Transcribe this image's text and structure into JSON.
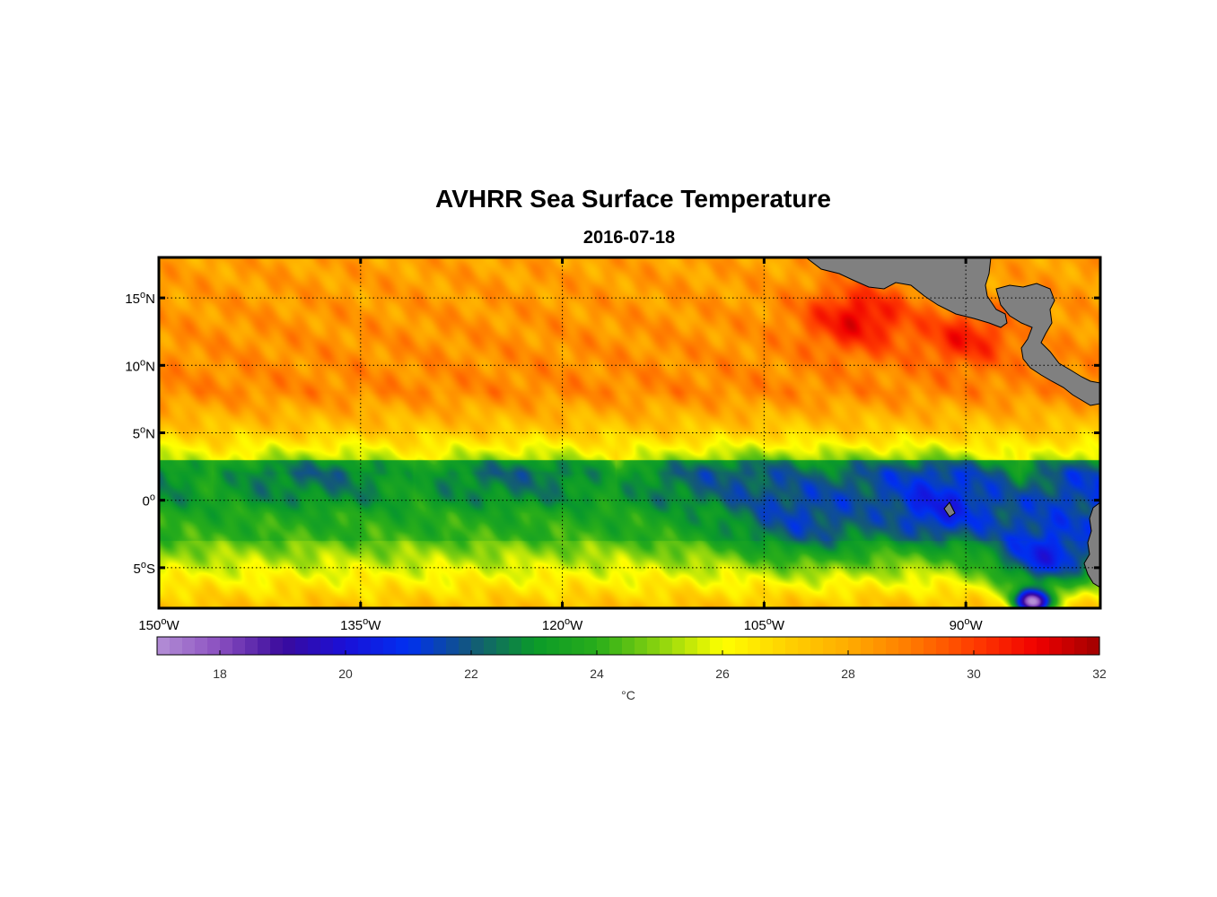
{
  "chart_data": {
    "type": "heatmap",
    "title": "AVHRR Sea Surface Temperature",
    "subtitle": "2016-07-18",
    "xlim": [
      -150,
      -80
    ],
    "ylim": [
      -8,
      18
    ],
    "x_ticks": [
      {
        "value": -150,
        "label": "150",
        "suffix": "W"
      },
      {
        "value": -135,
        "label": "135",
        "suffix": "W"
      },
      {
        "value": -120,
        "label": "120",
        "suffix": "W"
      },
      {
        "value": -105,
        "label": "105",
        "suffix": "W"
      },
      {
        "value": -90,
        "label": "90",
        "suffix": "W"
      }
    ],
    "y_ticks": [
      {
        "value": 15,
        "label": "15",
        "suffix": "N"
      },
      {
        "value": 10,
        "label": "10",
        "suffix": "N"
      },
      {
        "value": 5,
        "label": "5",
        "suffix": "N"
      },
      {
        "value": 0,
        "label": "0",
        "suffix": ""
      },
      {
        "value": -5,
        "label": "5",
        "suffix": "S"
      }
    ],
    "degree_symbol": "o",
    "colorbar": {
      "range": [
        17,
        32
      ],
      "ticks": [
        18,
        20,
        22,
        24,
        26,
        28,
        30,
        32
      ],
      "label": "°C",
      "stops": [
        {
          "value": 17,
          "color": "#b48fd6"
        },
        {
          "value": 18,
          "color": "#8a4fc0"
        },
        {
          "value": 19,
          "color": "#3a0a9c"
        },
        {
          "value": 20,
          "color": "#1a10d8"
        },
        {
          "value": 21,
          "color": "#0030f0"
        },
        {
          "value": 22,
          "color": "#13587a"
        },
        {
          "value": 23,
          "color": "#0a9a2a"
        },
        {
          "value": 24,
          "color": "#28ad1a"
        },
        {
          "value": 25,
          "color": "#8cd40e"
        },
        {
          "value": 26,
          "color": "#ffff00"
        },
        {
          "value": 27,
          "color": "#ffd200"
        },
        {
          "value": 28,
          "color": "#ffac00"
        },
        {
          "value": 29,
          "color": "#ff7a00"
        },
        {
          "value": 30,
          "color": "#ff3c00"
        },
        {
          "value": 31,
          "color": "#f00000"
        },
        {
          "value": 32,
          "color": "#a00000"
        }
      ]
    },
    "sst_features": [
      {
        "lon": -84,
        "lat": -4,
        "sst": 20.5,
        "spread": 4
      },
      {
        "lon": -85,
        "lat": -7.5,
        "sst": 17.5,
        "spread": 1.5
      },
      {
        "lon": -92,
        "lat": -0.5,
        "sst": 20.5,
        "spread": 3.5
      },
      {
        "lon": -102,
        "lat": -0.8,
        "sst": 21.5,
        "spread": 5
      },
      {
        "lon": -98,
        "lat": 13.5,
        "sst": 31,
        "spread": 4
      },
      {
        "lon": -90,
        "lat": 12,
        "sst": 30.5,
        "spread": 3.5
      }
    ],
    "land_color": "#808080"
  }
}
